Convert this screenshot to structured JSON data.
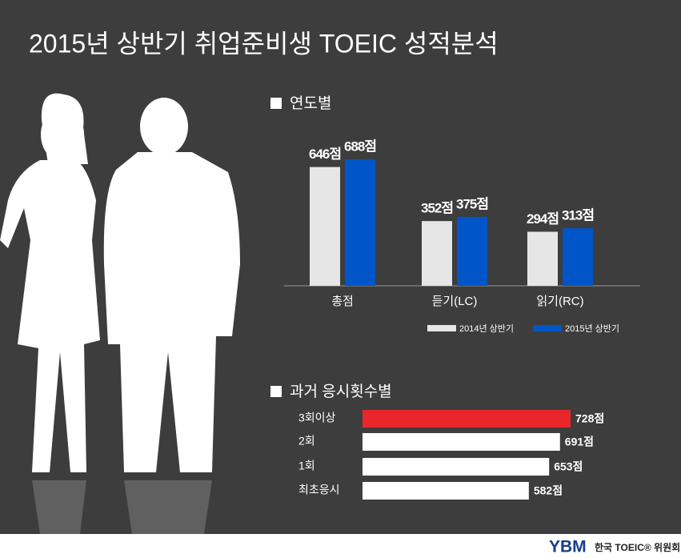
{
  "title": "2015년 상반기 취업준비생 TOEIC 성적분석",
  "chart_data": [
    {
      "type": "bar",
      "title": "연도별",
      "categories": [
        "총점",
        "듣기(LC)",
        "읽기(RC)"
      ],
      "series": [
        {
          "name": "2014년 상반기",
          "color": "#e6e6e6",
          "values": [
            646,
            352,
            294
          ],
          "value_labels": [
            "646점",
            "352점",
            "294점"
          ]
        },
        {
          "name": "2015년 상반기",
          "color": "#0055c8",
          "values": [
            688,
            375,
            313
          ],
          "value_labels": [
            "688점",
            "375점",
            "313점"
          ]
        }
      ],
      "legend": "bottom-right"
    },
    {
      "type": "barh",
      "title": "과거 응시횟수별",
      "categories": [
        "3회이상",
        "2회",
        "1회",
        "최초응시"
      ],
      "values": [
        728,
        691,
        653,
        582
      ],
      "value_labels": [
        "728점",
        "691점",
        "653점",
        "582점"
      ],
      "colors": [
        "#e8262b",
        "#ffffff",
        "#ffffff",
        "#ffffff"
      ]
    }
  ],
  "footer": {
    "logo": "YBM",
    "text": "한국 TOEIC® 위원회"
  }
}
